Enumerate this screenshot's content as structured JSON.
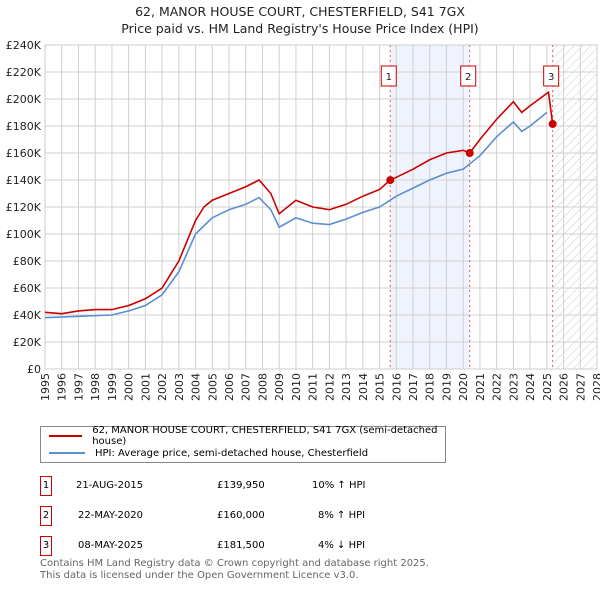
{
  "chart_data": {
    "type": "line",
    "title": "62, MANOR HOUSE COURT, CHESTERFIELD, S41 7GX",
    "subtitle": "Price paid vs. HM Land Registry's House Price Index (HPI)",
    "xlim": [
      1995,
      2028
    ],
    "ylim": [
      0,
      240000
    ],
    "yticks": [
      "£0",
      "£20K",
      "£40K",
      "£60K",
      "£80K",
      "£100K",
      "£120K",
      "£140K",
      "£160K",
      "£180K",
      "£200K",
      "£220K",
      "£240K"
    ],
    "xticks": [
      "1995",
      "1996",
      "1997",
      "1998",
      "1999",
      "2000",
      "2001",
      "2002",
      "2003",
      "2004",
      "2005",
      "2006",
      "2007",
      "2008",
      "2009",
      "2010",
      "2011",
      "2012",
      "2013",
      "2014",
      "2015",
      "2016",
      "2017",
      "2018",
      "2019",
      "2020",
      "2021",
      "2022",
      "2023",
      "2024",
      "2025",
      "2026",
      "2027",
      "2028"
    ],
    "grid": true,
    "series": [
      {
        "name": "62, MANOR HOUSE COURT, CHESTERFIELD, S41 7GX (semi-detached house)",
        "color": "#cc0000",
        "x": [
          1995,
          1996,
          1997,
          1998,
          1999,
          2000,
          2001,
          2002,
          2003,
          2004,
          2004.5,
          2005,
          2006,
          2007,
          2007.8,
          2008.5,
          2009,
          2010,
          2011,
          2012,
          2013,
          2014,
          2015,
          2015.64,
          2016,
          2017,
          2018,
          2019,
          2020,
          2020.39,
          2021,
          2022,
          2023,
          2023.5,
          2024,
          2025.1,
          2025.35
        ],
        "y": [
          42000,
          41000,
          43000,
          44000,
          44000,
          47000,
          52000,
          60000,
          80000,
          110000,
          120000,
          125000,
          130000,
          135000,
          140000,
          130000,
          115000,
          125000,
          120000,
          118000,
          122000,
          128000,
          133000,
          139950,
          142000,
          148000,
          155000,
          160000,
          162000,
          160000,
          170000,
          185000,
          198000,
          190000,
          195000,
          205000,
          181500
        ]
      },
      {
        "name": "HPI: Average price, semi-detached house, Chesterfield",
        "color": "#5b8fd0",
        "x": [
          1995,
          1997,
          1999,
          2000,
          2001,
          2002,
          2003,
          2004,
          2005,
          2006,
          2007,
          2007.8,
          2008.5,
          2009,
          2010,
          2011,
          2012,
          2013,
          2014,
          2015,
          2016,
          2017,
          2018,
          2019,
          2020,
          2021,
          2022,
          2023,
          2023.5,
          2024,
          2025
        ],
        "y": [
          38000,
          39000,
          40000,
          43000,
          47000,
          55000,
          72000,
          100000,
          112000,
          118000,
          122000,
          127000,
          118000,
          105000,
          112000,
          108000,
          107000,
          111000,
          116000,
          120000,
          128000,
          134000,
          140000,
          145000,
          148000,
          158000,
          172000,
          183000,
          176000,
          180000,
          190000
        ]
      }
    ],
    "sales": [
      {
        "label": "1",
        "x": 2015.64,
        "y": 139950,
        "date": "21-AUG-2015",
        "price": "£139,950",
        "hpi": "10% ↑ HPI"
      },
      {
        "label": "2",
        "x": 2020.39,
        "y": 160000,
        "date": "22-MAY-2020",
        "price": "£160,000",
        "hpi": "8% ↑ HPI"
      },
      {
        "label": "3",
        "x": 2025.35,
        "y": 181500,
        "date": "08-MAY-2025",
        "price": "£181,500",
        "hpi": "4% ↓ HPI"
      }
    ]
  },
  "footer": [
    "Contains HM Land Registry data © Crown copyright and database right 2025.",
    "This data is licensed under the Open Government Licence v3.0."
  ]
}
